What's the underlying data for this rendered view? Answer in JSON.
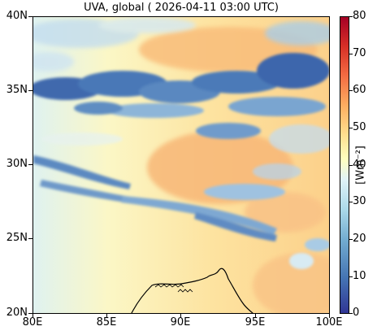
{
  "title": "UVA, global ( 2026-04-11 03:00 UTC)",
  "map": {
    "lon_ticks": [
      "80E",
      "85E",
      "90E",
      "95E",
      "100E"
    ],
    "lat_ticks": [
      "40N",
      "35N",
      "30N",
      "25N",
      "20N"
    ],
    "lon_range": [
      80,
      100
    ],
    "lat_range": [
      20,
      40
    ],
    "features": [
      "cloud-field",
      "coastline"
    ]
  },
  "colorbar": {
    "label": "[Wm⁻²]",
    "ticks": [
      "80",
      "70",
      "60",
      "50",
      "40",
      "30",
      "20",
      "10",
      "0"
    ],
    "range": [
      0,
      80
    ],
    "colormap": "RdYlBu_r",
    "colors": {
      "low": "#313695",
      "mid": "#ffffbf",
      "high": "#a50026"
    }
  }
}
